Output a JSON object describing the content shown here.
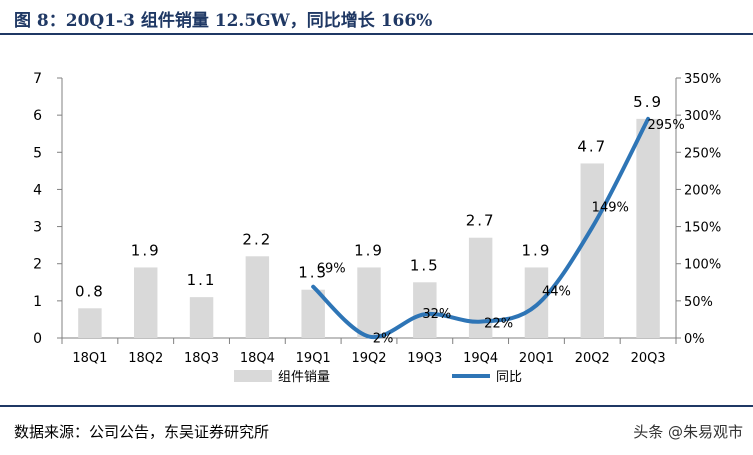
{
  "title": "图 8：20Q1-3 组件销量 12.5GW，同比增长 166%",
  "source": "数据来源：公司公告，东吴证券研究所",
  "watermark": "头条 @朱易观市",
  "colors": {
    "bar": "#d9d9d9",
    "line": "#2e75b6",
    "title": "#1f3864"
  },
  "chart_data": {
    "type": "bar",
    "categories": [
      "18Q1",
      "18Q2",
      "18Q3",
      "18Q4",
      "19Q1",
      "19Q2",
      "19Q3",
      "19Q4",
      "20Q1",
      "20Q2",
      "20Q3"
    ],
    "series": [
      {
        "name": "组件销量",
        "type": "bar",
        "axis": "left",
        "values": [
          0.8,
          1.9,
          1.1,
          2.2,
          1.3,
          1.9,
          1.5,
          2.7,
          1.9,
          4.7,
          5.9
        ],
        "labels": [
          "0.8",
          "1.9",
          "1.1",
          "2.2",
          "1.3",
          "1.9",
          "1.5",
          "2.7",
          "1.9",
          "4.7",
          "5.9"
        ]
      },
      {
        "name": "同比",
        "type": "line",
        "axis": "right",
        "smooth": true,
        "values": [
          null,
          null,
          null,
          null,
          69,
          2,
          32,
          22,
          44,
          149,
          295
        ],
        "labels": [
          "",
          "",
          "",
          "",
          "69%",
          "2%",
          "32%",
          "22%",
          "44%",
          "149%",
          "295%"
        ]
      }
    ],
    "y_left": {
      "lim": [
        0,
        7
      ],
      "ticks": [
        "0",
        "1",
        "2",
        "3",
        "4",
        "5",
        "6",
        "7"
      ]
    },
    "y_right": {
      "lim": [
        0,
        350
      ],
      "ticks": [
        "0%",
        "50%",
        "100%",
        "150%",
        "200%",
        "250%",
        "300%",
        "350%"
      ]
    },
    "legend_position": "bottom",
    "grid": false
  }
}
